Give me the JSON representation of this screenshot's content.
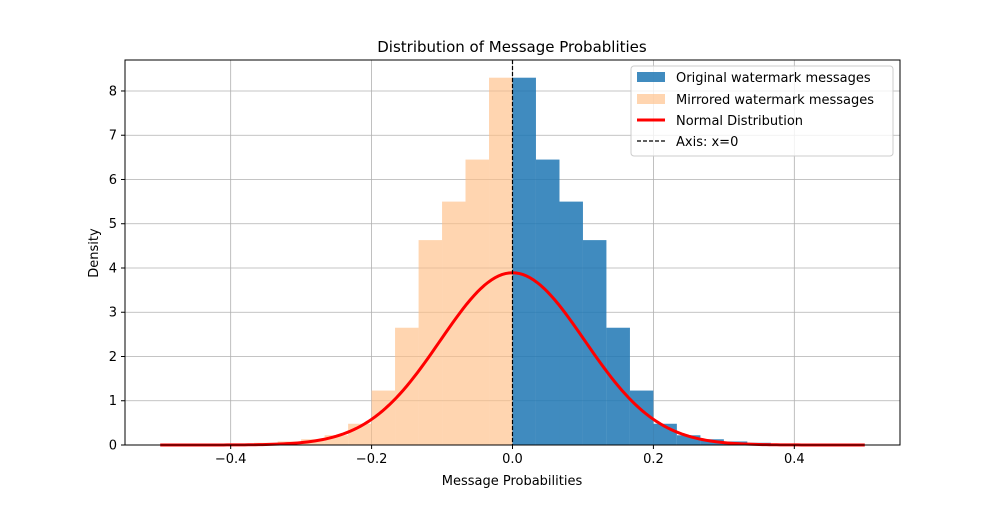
{
  "chart_data": {
    "type": "bar",
    "title": "Distribution of Message Probablities",
    "xlabel": "Message Probabilities",
    "ylabel": "Density",
    "xlim": [
      -0.55,
      0.55
    ],
    "ylim": [
      0,
      8.7
    ],
    "xticks": [
      -0.4,
      -0.2,
      0.0,
      0.2,
      0.4
    ],
    "xtick_labels": [
      "−0.4",
      "−0.2",
      "0.0",
      "0.2",
      "0.4"
    ],
    "yticks": [
      0,
      1,
      2,
      3,
      4,
      5,
      6,
      7,
      8
    ],
    "ytick_labels": [
      "0",
      "1",
      "2",
      "3",
      "4",
      "5",
      "6",
      "7",
      "8"
    ],
    "grid": true,
    "legend_position": "top-right",
    "bin_edges": [
      0.0,
      0.0333,
      0.0667,
      0.1,
      0.1333,
      0.1667,
      0.2,
      0.2333,
      0.2667,
      0.3,
      0.3333,
      0.3667,
      0.4,
      0.4333,
      0.4667,
      0.5
    ],
    "series": [
      {
        "name": "Original watermark messages",
        "kind": "histogram",
        "color": "#1f77b4",
        "opacity": 0.85,
        "values": [
          8.3,
          6.45,
          5.5,
          4.63,
          2.65,
          1.23,
          0.48,
          0.22,
          0.13,
          0.08,
          0.05,
          0.03,
          0.02,
          0.01,
          0.01
        ]
      },
      {
        "name": "Mirrored watermark messages",
        "kind": "histogram_mirror",
        "color": "#ffbe86",
        "opacity": 0.65,
        "values": [
          8.3,
          6.45,
          5.5,
          4.63,
          2.65,
          1.23,
          0.48,
          0.22,
          0.13,
          0.08,
          0.05,
          0.03,
          0.02,
          0.01,
          0.01
        ]
      },
      {
        "name": "Normal Distribution",
        "kind": "curve",
        "color": "#ff0000",
        "mean": 0.0,
        "std": 0.1025,
        "x_range": [
          -0.5,
          0.5
        ]
      },
      {
        "name": "Axis: x=0",
        "kind": "vline",
        "color": "#000000",
        "x": 0.0
      }
    ]
  }
}
